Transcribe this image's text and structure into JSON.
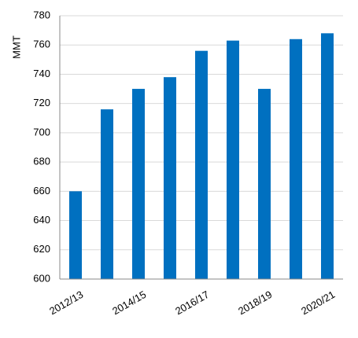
{
  "chart_data": {
    "type": "bar",
    "y_label": "MMT",
    "categories": [
      "2012/13",
      null,
      "2014/15",
      null,
      "2016/17",
      null,
      "2018/19",
      null,
      "2020/21"
    ],
    "values": [
      660,
      716,
      730,
      738,
      756,
      763,
      730,
      764,
      768
    ],
    "color": "#0070c0",
    "ylim": [
      600,
      780
    ],
    "yticks": [
      600,
      620,
      640,
      660,
      680,
      700,
      720,
      740,
      760,
      780
    ],
    "grid": true
  }
}
